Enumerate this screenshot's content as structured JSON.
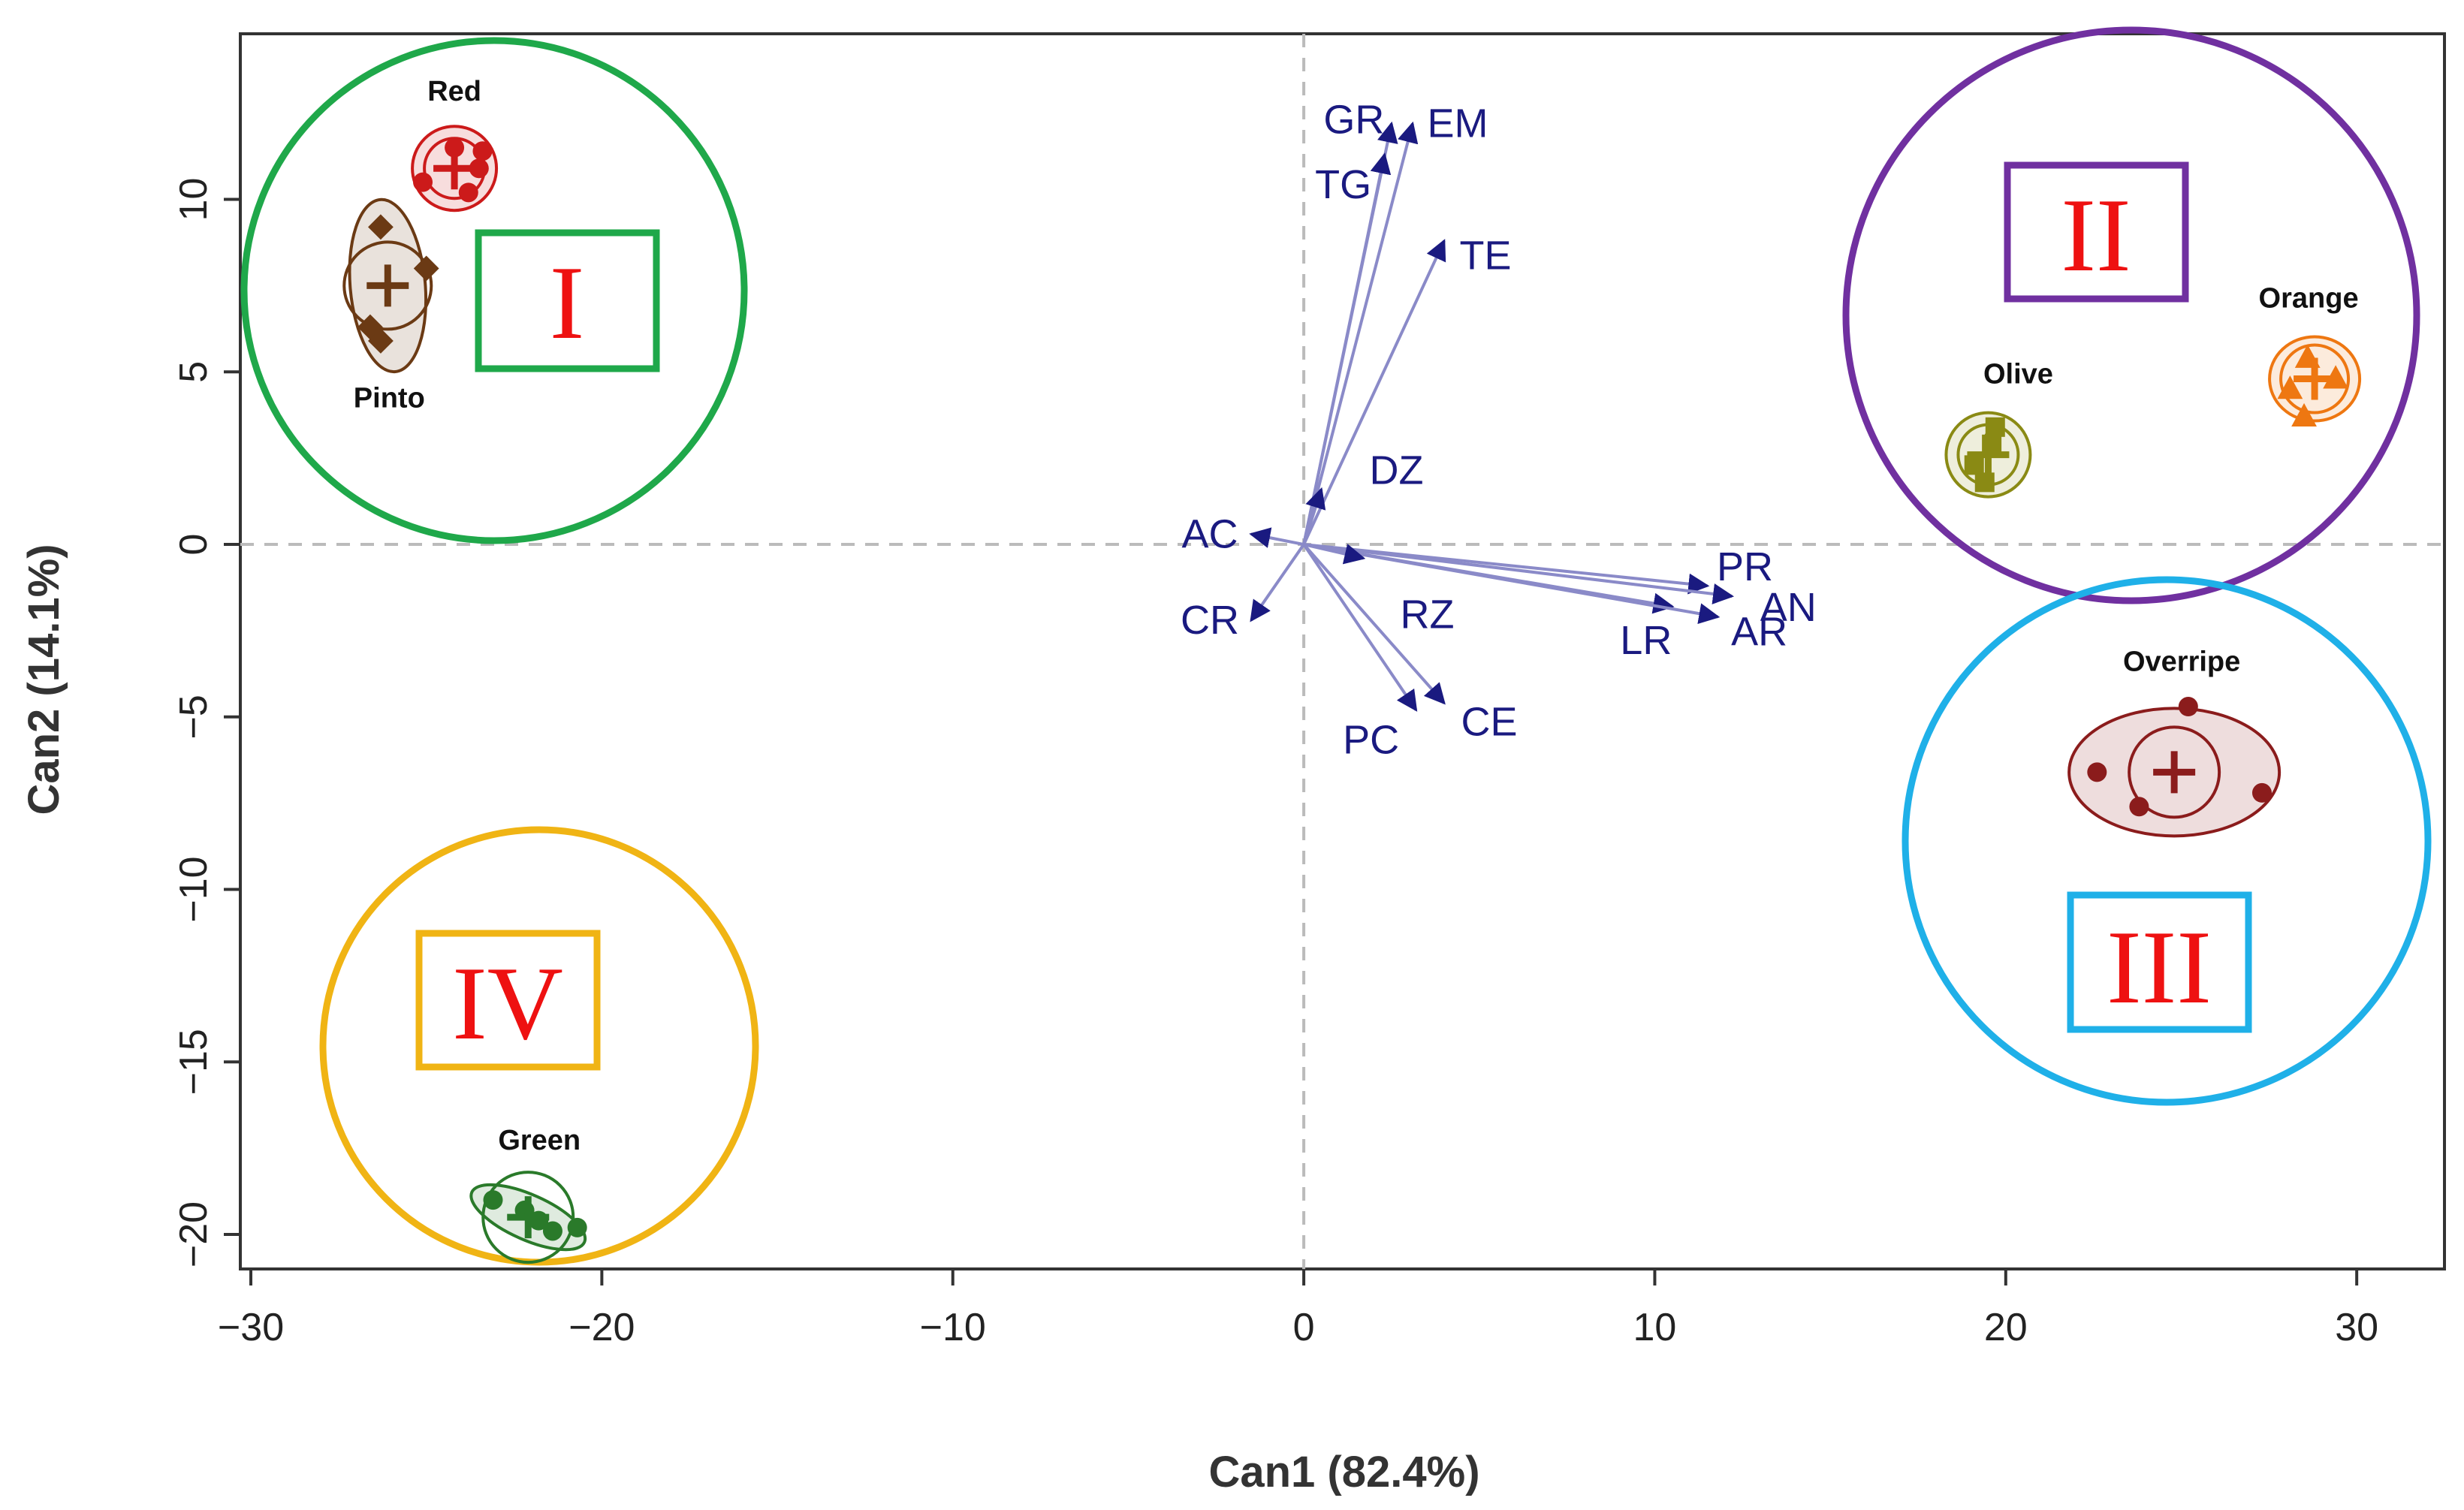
{
  "chart_data": {
    "type": "scatter",
    "xlabel": "Can1 (82.4%)",
    "ylabel": "Can2 (14.1%)",
    "xlim": [
      -30.3,
      32.5
    ],
    "ylim": [
      -21.0,
      14.8
    ],
    "xticks": [
      -30,
      -20,
      -10,
      0,
      10,
      20,
      30
    ],
    "yticks": [
      -20,
      -15,
      -10,
      -5,
      0,
      5,
      10
    ],
    "xtick_labels": [
      "−30",
      "−20",
      "−10",
      "0",
      "10",
      "20",
      "30"
    ],
    "ytick_labels": [
      "−20",
      "−15",
      "−10",
      "−5",
      "0",
      "5",
      "10"
    ],
    "reference_lines": {
      "x": 0,
      "y": 0,
      "style": "dashed"
    },
    "grid": false,
    "vector_color": "#1a1a80",
    "vectors": [
      {
        "label": "GR",
        "x": 2.5,
        "y": 12.2
      },
      {
        "label": "TG",
        "x": 2.3,
        "y": 11.3
      },
      {
        "label": "EM",
        "x": 3.1,
        "y": 12.2
      },
      {
        "label": "TE",
        "x": 4.0,
        "y": 8.8
      },
      {
        "label": "DZ",
        "x": 0.5,
        "y": 1.6
      },
      {
        "label": "AC",
        "x": -1.5,
        "y": 0.3
      },
      {
        "label": "CR",
        "x": -1.5,
        "y": -2.2
      },
      {
        "label": "PR",
        "x": 11.5,
        "y": -1.2
      },
      {
        "label": "AN",
        "x": 12.2,
        "y": -1.5
      },
      {
        "label": "LR",
        "x": 10.5,
        "y": -1.8
      },
      {
        "label": "AR",
        "x": 11.8,
        "y": -2.1
      },
      {
        "label": "RZ",
        "x": 1.7,
        "y": -0.4
      },
      {
        "label": "PC",
        "x": 3.2,
        "y": -4.8
      },
      {
        "label": "CE",
        "x": 4.0,
        "y": -4.6
      }
    ],
    "groups": [
      {
        "label": "Red",
        "color": "#cc1a1a",
        "marker": "circle",
        "center": [
          -24.2,
          10.9
        ],
        "points": [
          [
            -24.2,
            11.5
          ],
          [
            -23.4,
            11.4
          ],
          [
            -25.1,
            10.5
          ],
          [
            -23.8,
            10.2
          ],
          [
            -23.5,
            10.9
          ]
        ]
      },
      {
        "label": "Pinto",
        "color": "#6b3a14",
        "marker": "diamond",
        "center": [
          -26.1,
          7.5
        ],
        "points": [
          [
            -26.3,
            9.2
          ],
          [
            -25.0,
            8.0
          ],
          [
            -26.6,
            6.3
          ],
          [
            -26.3,
            5.9
          ]
        ]
      },
      {
        "label": "Olive",
        "color": "#8a8a14",
        "marker": "square",
        "center": [
          19.5,
          2.6
        ],
        "points": [
          [
            19.7,
            3.4
          ],
          [
            19.1,
            2.3
          ],
          [
            19.4,
            1.8
          ],
          [
            19.6,
            2.9
          ]
        ]
      },
      {
        "label": "Orange",
        "color": "#ee7711",
        "marker": "triangle",
        "center": [
          28.8,
          4.8
        ],
        "points": [
          [
            28.6,
            5.4
          ],
          [
            29.4,
            4.8
          ],
          [
            28.1,
            4.5
          ],
          [
            28.5,
            3.7
          ]
        ]
      },
      {
        "label": "Overripe",
        "color": "#8b1c1c",
        "marker": "circle",
        "center": [
          24.8,
          -6.6
        ],
        "points": [
          [
            25.2,
            -4.7
          ],
          [
            22.6,
            -6.6
          ],
          [
            27.3,
            -7.2
          ],
          [
            23.8,
            -7.6
          ]
        ]
      },
      {
        "label": "Green",
        "color": "#2a7a2a",
        "marker": "circle",
        "center": [
          -22.1,
          -19.5
        ],
        "points": [
          [
            -23.1,
            -19.0
          ],
          [
            -22.2,
            -19.3
          ],
          [
            -21.4,
            -19.9
          ],
          [
            -20.7,
            -19.8
          ],
          [
            -21.8,
            -19.6
          ]
        ]
      }
    ],
    "clusters": [
      {
        "label": "I",
        "color": "#1fa84a",
        "members": [
          "Red",
          "Pinto"
        ]
      },
      {
        "label": "II",
        "color": "#7030a0",
        "members": [
          "Olive",
          "Orange"
        ]
      },
      {
        "label": "III",
        "color": "#1fb0e8",
        "members": [
          "Overripe"
        ]
      },
      {
        "label": "IV",
        "color": "#f0b414",
        "members": [
          "Green"
        ]
      }
    ]
  }
}
